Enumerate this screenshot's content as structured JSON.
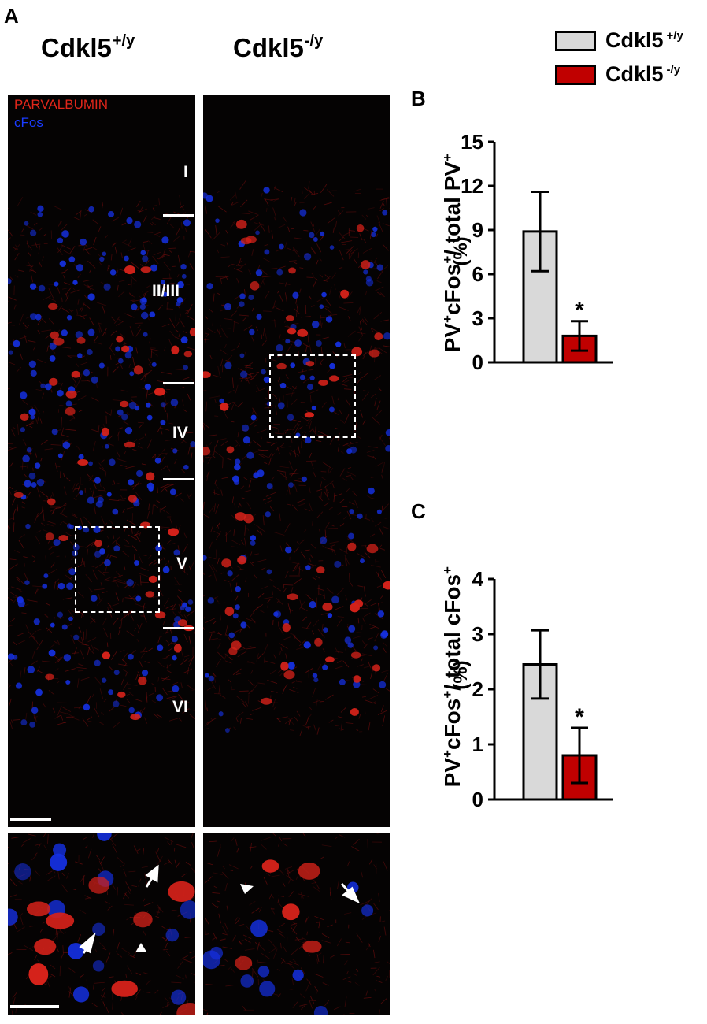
{
  "figure": {
    "panel_a_letter": "A",
    "panel_b_letter": "B",
    "panel_c_letter": "C",
    "genotype_wt_base": "Cdkl5",
    "genotype_wt_sup": "+/y",
    "genotype_ko_base": "Cdkl5",
    "genotype_ko_sup": "-/y",
    "stain_pv": "PARVALBUMIN",
    "stain_cfos": "cFos",
    "layers": [
      "I",
      "II/III",
      "IV",
      "V",
      "VI"
    ]
  },
  "legend": {
    "items": [
      {
        "base": "Cdkl5",
        "sup": "+/y",
        "color": "#d9d9d9"
      },
      {
        "base": "Cdkl5",
        "sup": "-/y",
        "color": "#c00000"
      }
    ]
  },
  "ylabels": {
    "b_main": "PV",
    "b_s1": "+",
    "b_mid": "cFos",
    "b_s2": "+",
    "b_mid2": "/ total PV",
    "b_s3": "+",
    "c_main": "PV",
    "c_s1": "+",
    "c_mid": "cFos",
    "c_s2": "+",
    "c_mid2": "/ total cFos",
    "c_s3": "+",
    "unit": "(%)"
  },
  "chart_data": [
    {
      "type": "bar",
      "panel": "B",
      "categories": [
        "Cdkl5 +/y",
        "Cdkl5 -/y"
      ],
      "values": [
        8.9,
        1.8
      ],
      "errors": [
        2.7,
        1.0
      ],
      "colors": [
        "#d9d9d9",
        "#c00000"
      ],
      "ylim": [
        0,
        15
      ],
      "yticks": [
        0,
        3,
        6,
        9,
        12,
        15
      ],
      "annotations": [
        "",
        "*"
      ]
    },
    {
      "type": "bar",
      "panel": "C",
      "categories": [
        "Cdkl5 +/y",
        "Cdkl5 -/y"
      ],
      "values": [
        2.45,
        0.8
      ],
      "errors": [
        0.62,
        0.5
      ],
      "colors": [
        "#d9d9d9",
        "#c00000"
      ],
      "ylim": [
        0,
        4
      ],
      "yticks": [
        0,
        1,
        2,
        3,
        4
      ],
      "annotations": [
        "",
        "*"
      ]
    }
  ]
}
